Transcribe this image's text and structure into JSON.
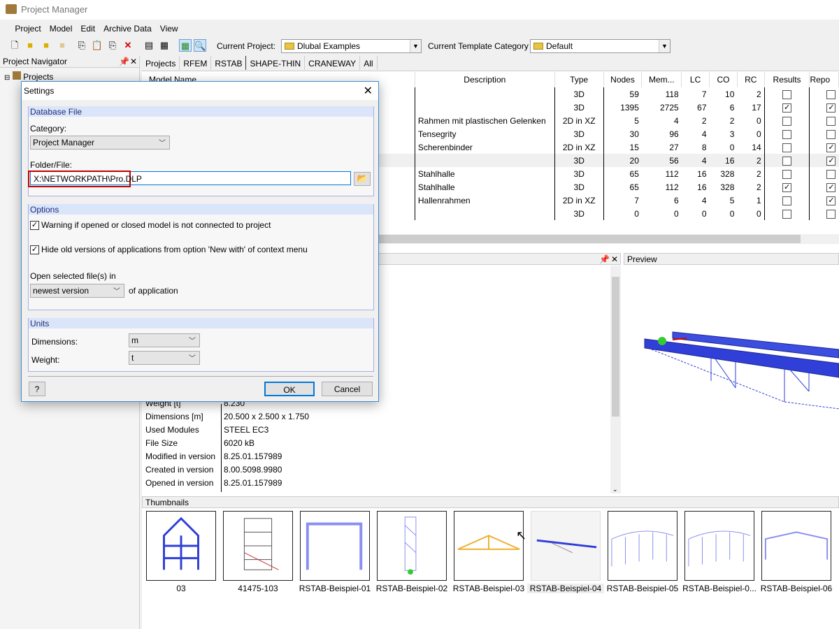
{
  "window": {
    "title": "Project Manager"
  },
  "menu": [
    "Project",
    "Model",
    "Edit",
    "Archive Data",
    "View"
  ],
  "toolbar": {
    "current_project_label": "Current Project:",
    "current_project": "Dlubal Examples",
    "template_label": "Current Template Category",
    "template": "Default"
  },
  "navigator": {
    "title": "Project Navigator",
    "root": "Projects"
  },
  "tabs": [
    "Projects",
    "RFEM",
    "RSTAB",
    "SHAPE-THIN",
    "CRANEWAY",
    "All"
  ],
  "active_tab": "RSTAB",
  "table": {
    "columns": [
      "Model Name",
      "Description",
      "Type",
      "Nodes",
      "Mem...",
      "LC",
      "CO",
      "RC",
      "Results",
      "Repo"
    ],
    "rows": [
      {
        "desc": "",
        "type": "3D",
        "nodes": "59",
        "mem": "118",
        "lc": "7",
        "co": "10",
        "rc": "2",
        "results": false,
        "report": false
      },
      {
        "desc": "",
        "type": "3D",
        "nodes": "1395",
        "mem": "2725",
        "lc": "67",
        "co": "6",
        "rc": "17",
        "results": true,
        "report": true
      },
      {
        "desc": "Rahmen mit plastischen Gelenken",
        "type": "2D in XZ",
        "nodes": "5",
        "mem": "4",
        "lc": "2",
        "co": "2",
        "rc": "0",
        "results": false,
        "report": false
      },
      {
        "desc": "Tensegrity",
        "type": "3D",
        "nodes": "30",
        "mem": "96",
        "lc": "4",
        "co": "3",
        "rc": "0",
        "results": false,
        "report": false
      },
      {
        "desc": "Scherenbinder",
        "type": "2D in XZ",
        "nodes": "15",
        "mem": "27",
        "lc": "8",
        "co": "0",
        "rc": "14",
        "results": false,
        "report": true
      },
      {
        "desc": "",
        "type": "3D",
        "nodes": "20",
        "mem": "56",
        "lc": "4",
        "co": "16",
        "rc": "2",
        "results": false,
        "report": true,
        "selected": true
      },
      {
        "desc": "Stahlhalle",
        "type": "3D",
        "nodes": "65",
        "mem": "112",
        "lc": "16",
        "co": "328",
        "rc": "2",
        "results": false,
        "report": false
      },
      {
        "desc": "Stahlhalle",
        "type": "3D",
        "nodes": "65",
        "mem": "112",
        "lc": "16",
        "co": "328",
        "rc": "2",
        "results": true,
        "report": true
      },
      {
        "desc": "Hallenrahmen",
        "type": "2D in XZ",
        "nodes": "7",
        "mem": "6",
        "lc": "4",
        "co": "5",
        "rc": "1",
        "results": false,
        "report": true
      },
      {
        "desc": "",
        "type": "3D",
        "nodes": "0",
        "mem": "0",
        "lc": "0",
        "co": "0",
        "rc": "0",
        "results": false,
        "report": false
      }
    ]
  },
  "details": [
    {
      "k": "Weight [t]",
      "v": "8.230"
    },
    {
      "k": "Dimensions [m]",
      "v": "20.500 x 2.500 x 1.750"
    },
    {
      "k": "Used Modules",
      "v": "STEEL EC3"
    },
    {
      "k": "File Size",
      "v": "6020 kB"
    },
    {
      "k": "Modified in version",
      "v": "8.25.01.157989"
    },
    {
      "k": "Created in version",
      "v": "8.00.5098.9980"
    },
    {
      "k": "Opened in version",
      "v": "8.25.01.157989"
    }
  ],
  "preview": {
    "title": "Preview"
  },
  "thumbnails": {
    "title": "Thumbnails",
    "items": [
      "03",
      "41475-103",
      "RSTAB-Beispiel-01",
      "RSTAB-Beispiel-02",
      "RSTAB-Beispiel-03",
      "RSTAB-Beispiel-04",
      "RSTAB-Beispiel-05",
      "RSTAB-Beispiel-0...",
      "RSTAB-Beispiel-06"
    ],
    "selected": "RSTAB-Beispiel-04"
  },
  "dialog": {
    "title": "Settings",
    "db_section": "Database File",
    "category_label": "Category:",
    "category": "Project Manager",
    "folder_label": "Folder/File:",
    "folder_value": "X:\\NETWORKPATH\\Pro.DLP",
    "options_section": "Options",
    "opt1": "Warning if opened or closed model is not connected to project",
    "opt1_checked": true,
    "opt2": "Hide old versions of applications from option 'New with' of context menu",
    "opt2_checked": true,
    "open_in_label": "Open selected file(s) in",
    "open_in_value": "newest version",
    "of_application": "of application",
    "units_section": "Units",
    "dimensions_label": "Dimensions:",
    "dimensions": "m",
    "weight_label": "Weight:",
    "weight": "t",
    "ok": "OK",
    "cancel": "Cancel"
  },
  "colors": {
    "highlight_border": "#c00000",
    "accent": "#0078d7",
    "section_header": "#dbe5fa",
    "model_blue": "#2f3fd8"
  }
}
